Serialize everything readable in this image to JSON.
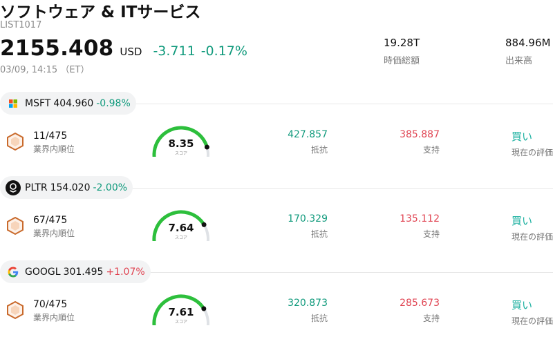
{
  "header": {
    "title": "ソフトウェア & ITサービス",
    "code": "LIST1017",
    "price": "2155.408",
    "currency": "USD",
    "change": "-3.711",
    "change_pct": "-0.17%",
    "timestamp": "03/09, 14:15 （ET）",
    "market_cap_value": "19.28T",
    "market_cap_label": "時価総額",
    "volume_value": "884.96M",
    "volume_label": "出来高"
  },
  "colors": {
    "up_green": "#109a7c",
    "down_red": "#e04452",
    "buy_teal": "#1bb0a0",
    "gauge_green": "#2dbf3c"
  },
  "stocks": [
    {
      "ticker": "MSFT",
      "price": "404.960",
      "change_pct": "-0.98%",
      "change_color": "#109a7c",
      "logo": "microsoft-logo-icon",
      "rank": "11/475",
      "rank_label": "業界内順位",
      "score": "8.35",
      "score_fraction": 0.835,
      "score_label": "スコア",
      "resistance": "427.857",
      "resistance_label": "抵抗",
      "support": "385.887",
      "support_label": "支持",
      "rating": "買い",
      "rating_label": "現在の評価"
    },
    {
      "ticker": "PLTR",
      "price": "154.020",
      "change_pct": "-2.00%",
      "change_color": "#109a7c",
      "logo": "palantir-logo-icon",
      "rank": "67/475",
      "rank_label": "業界内順位",
      "score": "7.64",
      "score_fraction": 0.764,
      "score_label": "スコア",
      "resistance": "170.329",
      "resistance_label": "抵抗",
      "support": "135.112",
      "support_label": "支持",
      "rating": "買い",
      "rating_label": "現在の評価"
    },
    {
      "ticker": "GOOGL",
      "price": "301.495",
      "change_pct": "+1.07%",
      "change_color": "#e04452",
      "logo": "google-logo-icon",
      "rank": "70/475",
      "rank_label": "業界内順位",
      "score": "7.61",
      "score_fraction": 0.761,
      "score_label": "スコア",
      "resistance": "320.873",
      "resistance_label": "抵抗",
      "support": "285.673",
      "support_label": "支持",
      "rating": "買い",
      "rating_label": "現在の評価"
    }
  ]
}
